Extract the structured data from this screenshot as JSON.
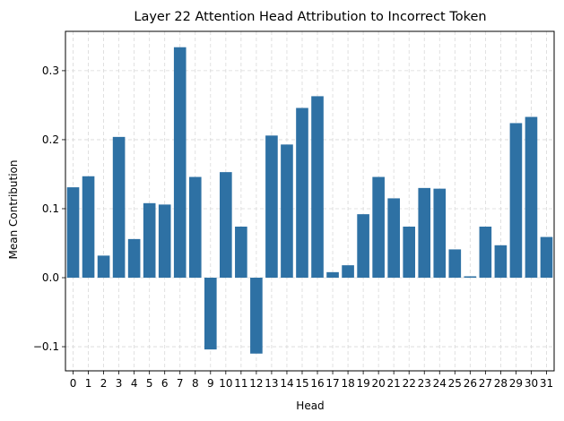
{
  "chart_data": {
    "type": "bar",
    "title": "Layer 22 Attention Head Attribution to Incorrect Token",
    "xlabel": "Head",
    "ylabel": "Mean Contribution",
    "categories": [
      "0",
      "1",
      "2",
      "3",
      "4",
      "5",
      "6",
      "7",
      "8",
      "9",
      "10",
      "11",
      "12",
      "13",
      "14",
      "15",
      "16",
      "17",
      "18",
      "19",
      "20",
      "21",
      "22",
      "23",
      "24",
      "25",
      "26",
      "27",
      "28",
      "29",
      "30",
      "31"
    ],
    "values": [
      0.131,
      0.147,
      0.032,
      0.204,
      0.056,
      0.108,
      0.106,
      0.334,
      0.146,
      -0.104,
      0.153,
      0.074,
      -0.11,
      0.206,
      0.193,
      0.246,
      0.263,
      0.008,
      0.018,
      0.092,
      0.146,
      0.115,
      0.074,
      0.13,
      0.129,
      0.041,
      0.002,
      0.074,
      0.047,
      0.224,
      0.233,
      0.059
    ],
    "ylim": [
      -0.135,
      0.357
    ],
    "yticks": [
      -0.1,
      0.0,
      0.1,
      0.2,
      0.3
    ],
    "ytick_labels": [
      "−0.1",
      "0.0",
      "0.1",
      "0.2",
      "0.3"
    ],
    "grid": true,
    "bar_color": "#2e71a4"
  }
}
